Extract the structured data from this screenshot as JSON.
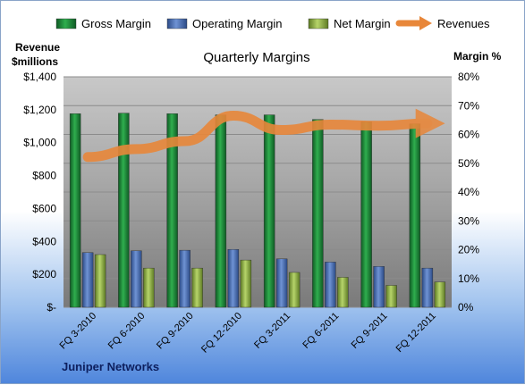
{
  "footer_label": "Juniper Networks",
  "chart_data": {
    "type": "bar",
    "title": "Quarterly Margins",
    "left_axis_label": [
      "Revenue",
      "$millions"
    ],
    "right_axis_label": "Margin %",
    "categories": [
      "FQ 3-2010",
      "FQ 6-2010",
      "FQ 9-2010",
      "FQ 12-2010",
      "FQ 3-2011",
      "FQ 6-2011",
      "FQ 9-2011",
      "FQ 12-2011"
    ],
    "left_axis": {
      "min": 0,
      "max": 1400,
      "ticks": [
        "$-",
        "$200",
        "$400",
        "$600",
        "$800",
        "$1,000",
        "$1,200",
        "$1,400"
      ]
    },
    "right_axis": {
      "min": 0,
      "max": 80,
      "ticks": [
        "0%",
        "10%",
        "20%",
        "30%",
        "40%",
        "50%",
        "60%",
        "70%",
        "80%"
      ]
    },
    "series": [
      {
        "name": "Gross Margin",
        "axis": "right",
        "color": "#1f8a3a",
        "values": [
          67.2,
          67.4,
          67.2,
          66.8,
          66.8,
          65.2,
          64.4,
          63.7
        ]
      },
      {
        "name": "Operating Margin",
        "axis": "right",
        "color": "#4a72b8",
        "values": [
          19.0,
          19.6,
          19.8,
          20.1,
          16.8,
          15.7,
          14.2,
          13.6
        ]
      },
      {
        "name": "Net Margin",
        "axis": "right",
        "color": "#8fb040",
        "values": [
          18.3,
          13.6,
          13.6,
          16.4,
          12.1,
          10.4,
          7.6,
          8.8
        ]
      },
      {
        "name": "Revenues",
        "axis": "left",
        "color": "#e8873a",
        "type": "line",
        "values": [
          913,
          961,
          1009,
          1164,
          1077,
          1110,
          1103,
          1117
        ]
      }
    ],
    "legend_position": "top",
    "grid": true
  }
}
